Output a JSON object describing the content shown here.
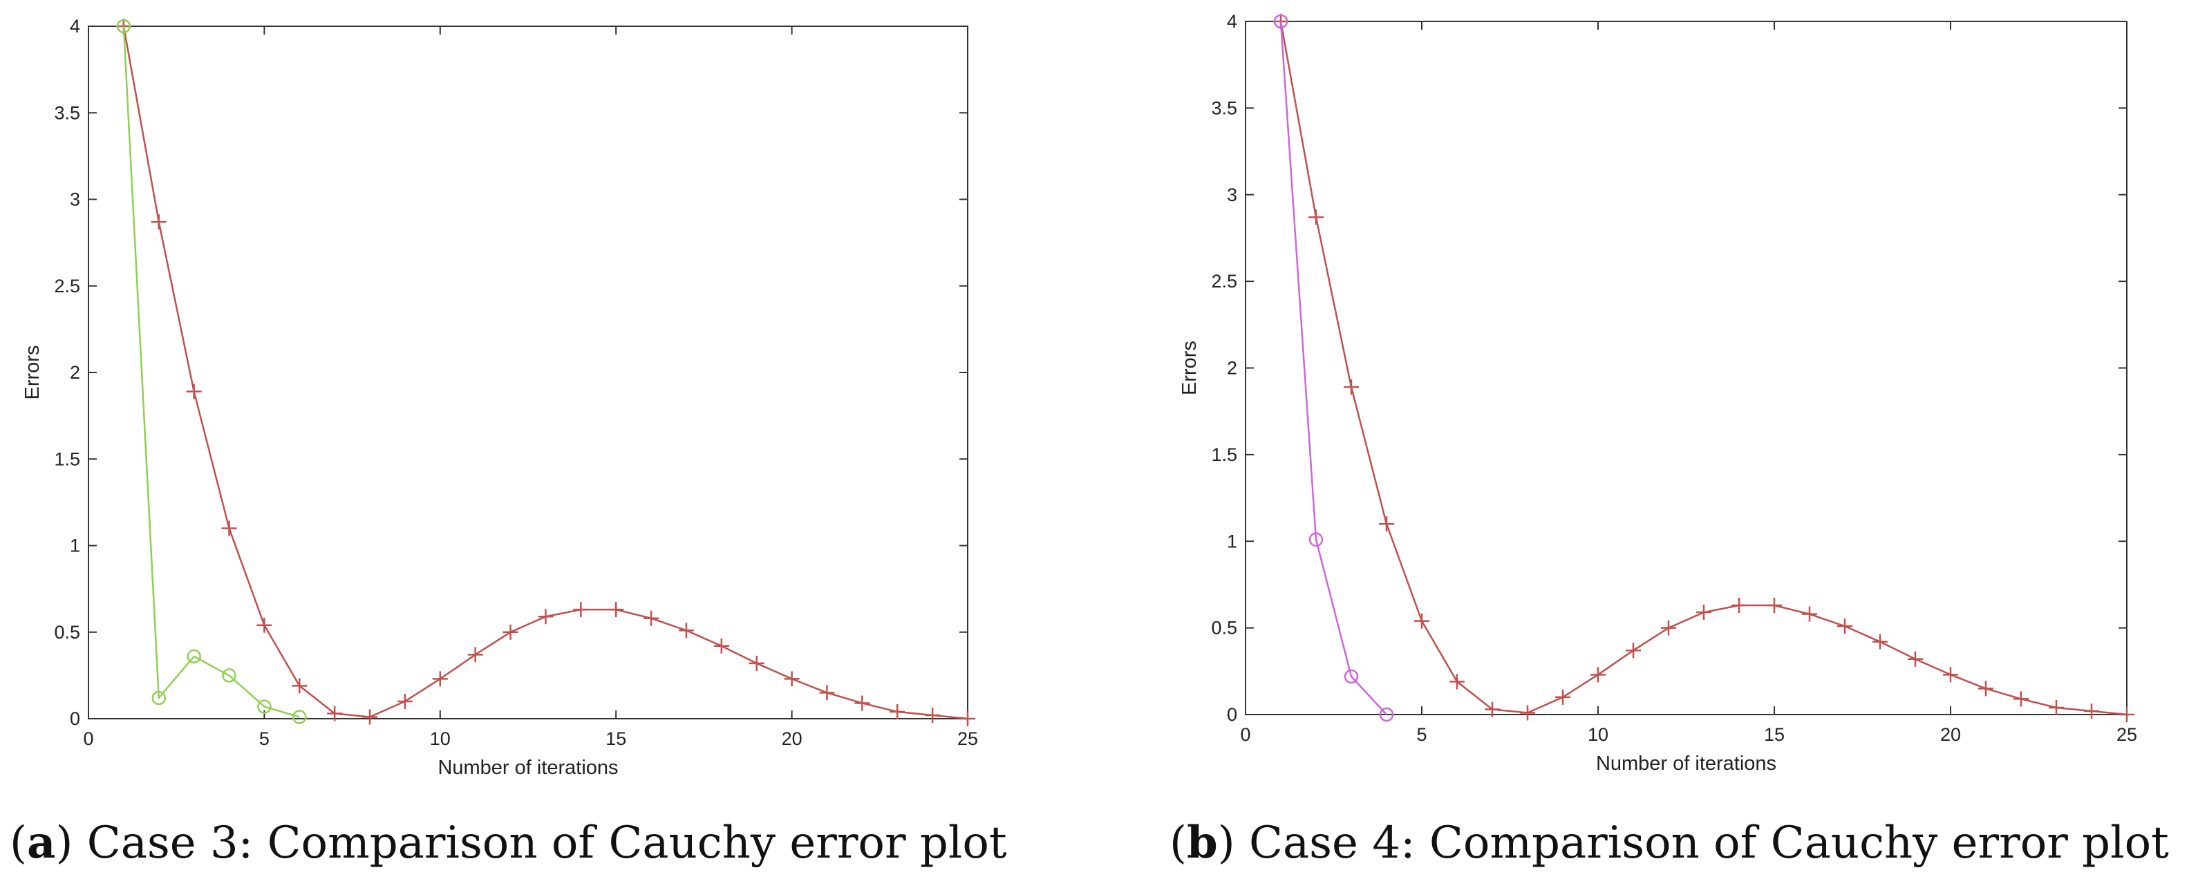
{
  "chart_data": [
    {
      "type": "line",
      "panel": "a",
      "xlabel": "Number of iterations",
      "ylabel": "Errors",
      "xlim": [
        0,
        25
      ],
      "ylim": [
        0,
        4
      ],
      "xticks": [
        0,
        5,
        10,
        15,
        20,
        25
      ],
      "yticks": [
        0,
        0.5,
        1,
        1.5,
        2,
        2.5,
        3,
        3.5,
        4
      ],
      "grid": false,
      "caption": {
        "label": "a",
        "text": ") Case 3: Comparison of Cauchy error plot"
      },
      "series": [
        {
          "marker": "plus",
          "color": "#c0504d",
          "x": [
            1,
            2,
            3,
            4,
            5,
            6,
            7,
            8,
            9,
            10,
            11,
            12,
            13,
            14,
            15,
            16,
            17,
            18,
            19,
            20,
            21,
            22,
            23,
            24,
            25
          ],
          "y": [
            4,
            2.87,
            1.89,
            1.1,
            0.54,
            0.19,
            0.03,
            0.01,
            0.1,
            0.23,
            0.37,
            0.5,
            0.59,
            0.63,
            0.63,
            0.58,
            0.51,
            0.42,
            0.32,
            0.23,
            0.15,
            0.09,
            0.04,
            0.02,
            0.0
          ]
        },
        {
          "marker": "circle",
          "color": "#8fd14f",
          "x": [
            1,
            2,
            3,
            4,
            5,
            6
          ],
          "y": [
            4,
            0.12,
            0.36,
            0.25,
            0.07,
            0.01
          ]
        }
      ]
    },
    {
      "type": "line",
      "panel": "b",
      "xlabel": "Number of iterations",
      "ylabel": "Errors",
      "xlim": [
        0,
        25
      ],
      "ylim": [
        0,
        4
      ],
      "xticks": [
        0,
        5,
        10,
        15,
        20,
        25
      ],
      "yticks": [
        0,
        0.5,
        1,
        1.5,
        2,
        2.5,
        3,
        3.5,
        4
      ],
      "grid": false,
      "caption": {
        "label": "b",
        "text": ") Case 4: Comparison of Cauchy error plot"
      },
      "series": [
        {
          "marker": "plus",
          "color": "#c0504d",
          "x": [
            1,
            2,
            3,
            4,
            5,
            6,
            7,
            8,
            9,
            10,
            11,
            12,
            13,
            14,
            15,
            16,
            17,
            18,
            19,
            20,
            21,
            22,
            23,
            24,
            25
          ],
          "y": [
            4,
            2.87,
            1.89,
            1.1,
            0.54,
            0.19,
            0.03,
            0.01,
            0.1,
            0.23,
            0.37,
            0.5,
            0.59,
            0.63,
            0.63,
            0.58,
            0.51,
            0.42,
            0.32,
            0.23,
            0.15,
            0.09,
            0.04,
            0.02,
            0.0
          ]
        },
        {
          "marker": "circle",
          "color": "#cc66dd",
          "x": [
            1,
            2,
            3,
            4
          ],
          "y": [
            4,
            1.01,
            0.22,
            0.0
          ]
        }
      ]
    }
  ]
}
